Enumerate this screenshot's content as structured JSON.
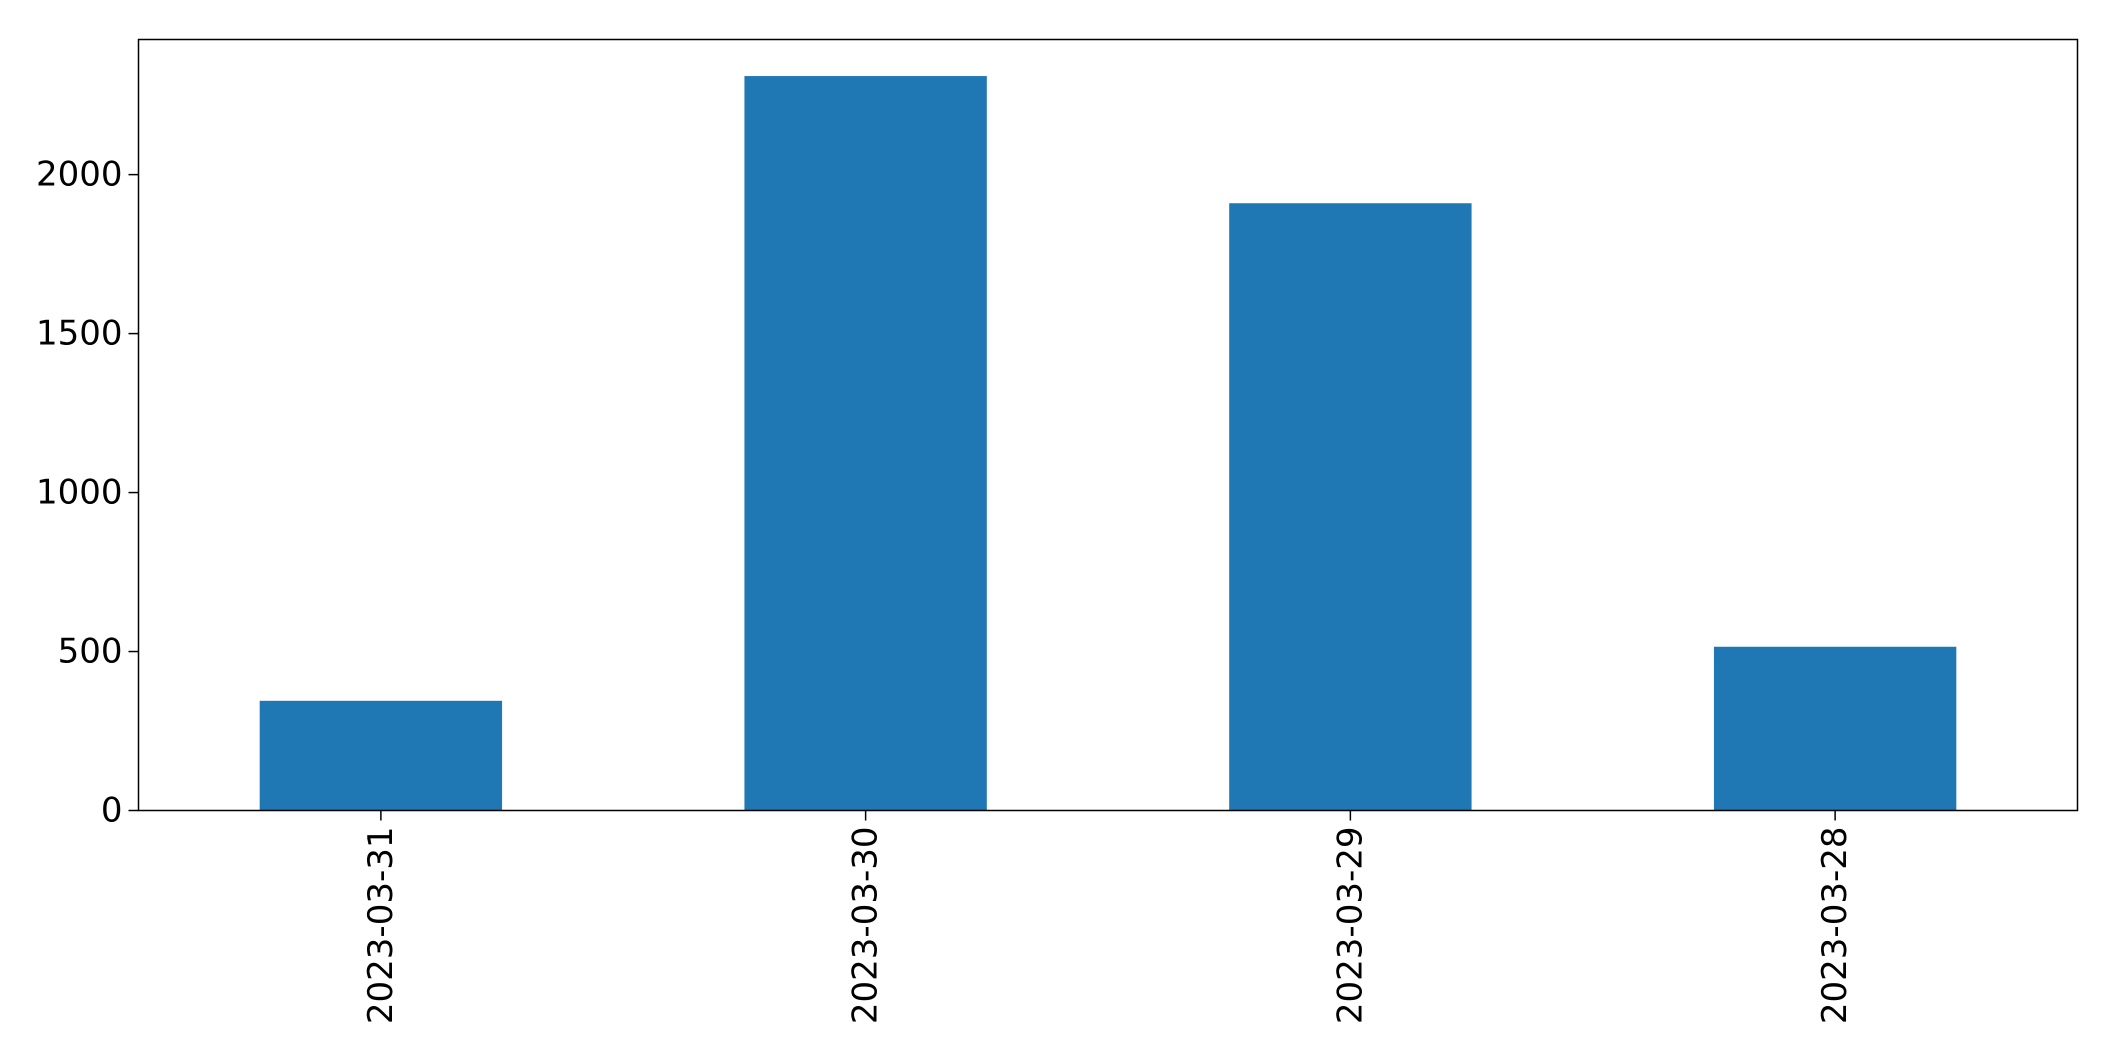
{
  "chart_data": {
    "type": "bar",
    "categories": [
      "2023-03-31",
      "2023-03-30",
      "2023-03-29",
      "2023-03-28"
    ],
    "values": [
      345,
      2310,
      1910,
      515
    ],
    "yticks": [
      0,
      500,
      1000,
      1500,
      2000
    ],
    "ylim": [
      0,
      2425
    ],
    "xlabel": "",
    "ylabel": "",
    "title": "",
    "grid": false,
    "legend": "none",
    "bar_color": "#1f77b4"
  }
}
